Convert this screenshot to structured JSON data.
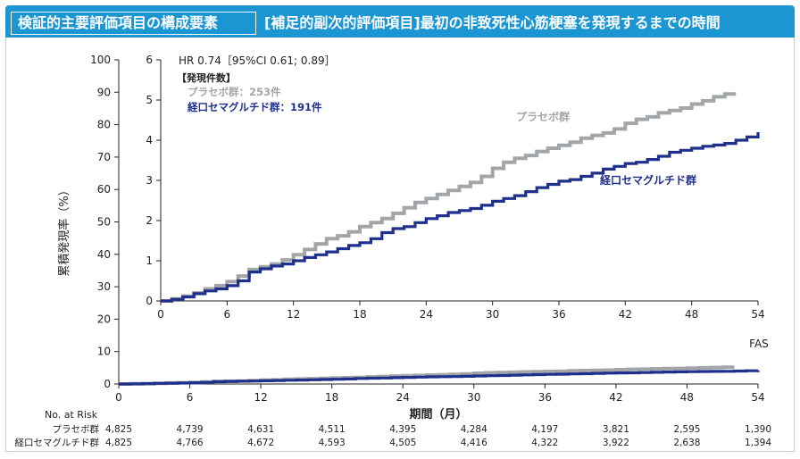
{
  "header": {
    "title_box": "検証的主要評価項目の構成要素",
    "title_main": "[補足的副次的評価項目]最初の非致死性心筋梗塞を発現するまでの時間"
  },
  "colors": {
    "header_bg": "#1b96d2",
    "placebo": "#a3a6a9",
    "semaglutide": "#1f2f8c"
  },
  "chart_data": {
    "type": "line",
    "xlabel": "期間（月）",
    "ylabel": "累積発現率（%）",
    "x_ticks": [
      0,
      6,
      12,
      18,
      24,
      30,
      36,
      42,
      48,
      54
    ],
    "main_ylim": [
      0,
      100
    ],
    "main_y_ticks": [
      0,
      10,
      20,
      30,
      40,
      50,
      60,
      70,
      80,
      90,
      100
    ],
    "inset_ylim": [
      0,
      6
    ],
    "inset_y_ticks": [
      0,
      1,
      2,
      3,
      4,
      5,
      6
    ],
    "fas_label": "FAS",
    "hr_text": "HR 0.74［95%CI 0.61; 0.89］",
    "events_title": "【発現件数】",
    "series": [
      {
        "name": "プラセボ群",
        "events_text": "プラセボ群：253件",
        "x": [
          0,
          1,
          2,
          3,
          4,
          5,
          6,
          7,
          8,
          9,
          10,
          11,
          12,
          13,
          14,
          15,
          16,
          17,
          18,
          19,
          20,
          21,
          22,
          23,
          24,
          25,
          26,
          27,
          28,
          29,
          30,
          31,
          32,
          33,
          34,
          35,
          36,
          37,
          38,
          39,
          40,
          41,
          42,
          43,
          44,
          45,
          46,
          47,
          48,
          49,
          50,
          51,
          52
        ],
        "y": [
          0,
          0.05,
          0.12,
          0.2,
          0.3,
          0.38,
          0.48,
          0.62,
          0.78,
          0.85,
          0.92,
          1.02,
          1.15,
          1.28,
          1.42,
          1.55,
          1.62,
          1.72,
          1.85,
          1.95,
          2.05,
          2.18,
          2.32,
          2.45,
          2.55,
          2.65,
          2.75,
          2.85,
          2.95,
          3.1,
          3.3,
          3.45,
          3.55,
          3.62,
          3.72,
          3.8,
          3.87,
          3.95,
          4.05,
          4.12,
          4.18,
          4.28,
          4.42,
          4.52,
          4.58,
          4.68,
          4.74,
          4.8,
          4.9,
          4.98,
          5.08,
          5.15,
          5.15
        ]
      },
      {
        "name": "経口セマグルチド群",
        "events_text": "経口セマグルチド群：191件",
        "x": [
          0,
          1,
          2,
          3,
          4,
          5,
          6,
          7,
          8,
          9,
          10,
          11,
          12,
          13,
          14,
          15,
          16,
          17,
          18,
          19,
          20,
          21,
          22,
          23,
          24,
          25,
          26,
          27,
          28,
          29,
          30,
          31,
          32,
          33,
          34,
          35,
          36,
          37,
          38,
          39,
          40,
          41,
          42,
          43,
          44,
          45,
          46,
          47,
          48,
          49,
          50,
          51,
          52,
          53,
          54
        ],
        "y": [
          0,
          0.04,
          0.1,
          0.18,
          0.25,
          0.3,
          0.38,
          0.5,
          0.72,
          0.8,
          0.87,
          0.92,
          1.0,
          1.08,
          1.15,
          1.22,
          1.3,
          1.38,
          1.45,
          1.55,
          1.7,
          1.8,
          1.85,
          1.95,
          2.05,
          2.12,
          2.2,
          2.25,
          2.3,
          2.38,
          2.48,
          2.55,
          2.62,
          2.72,
          2.82,
          2.9,
          2.98,
          3.02,
          3.1,
          3.18,
          3.28,
          3.35,
          3.42,
          3.45,
          3.52,
          3.6,
          3.7,
          3.75,
          3.8,
          3.85,
          3.88,
          3.92,
          4.0,
          4.08,
          4.2
        ]
      }
    ],
    "risk_table": {
      "title": "No. at Risk",
      "rows": [
        {
          "label": "プラセボ群",
          "values": [
            "4,825",
            "4,739",
            "4,631",
            "4,511",
            "4,395",
            "4,284",
            "4,197",
            "3,821",
            "2,595",
            "1,390"
          ]
        },
        {
          "label": "経口セマグルチド群",
          "values": [
            "4,825",
            "4,766",
            "4,672",
            "4,593",
            "4,505",
            "4,416",
            "4,322",
            "3,922",
            "2,638",
            "1,394"
          ]
        }
      ]
    }
  }
}
